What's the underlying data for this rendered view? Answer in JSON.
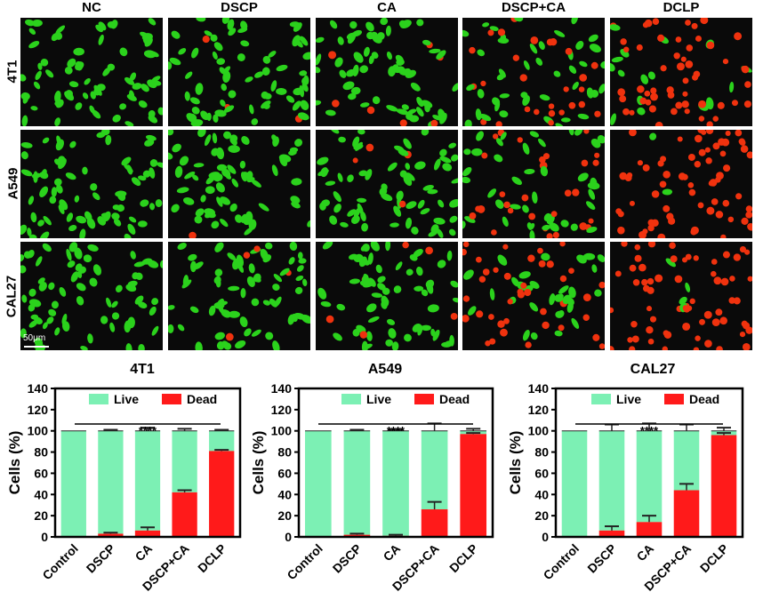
{
  "micrograph_grid": {
    "columns": [
      "NC",
      "DSCP",
      "CA",
      "DSCP+CA",
      "DCLP"
    ],
    "rows": [
      "4T1",
      "A549",
      "CAL27"
    ],
    "scale_bar": "50μm",
    "stain_colors": {
      "live": "#2bd21c",
      "dead": "#f0320e",
      "background": "#0a0a0a"
    }
  },
  "chart_data": [
    {
      "type": "bar",
      "stacked": true,
      "title": "4T1",
      "ylabel": "Cells (%)",
      "categories": [
        "Control",
        "DSCP",
        "CA",
        "DSCP+CA",
        "DCLP"
      ],
      "ylim": [
        0,
        140
      ],
      "yticks": [
        "0",
        "20",
        "40",
        "60",
        "80",
        "100",
        "120",
        "140"
      ],
      "series": [
        {
          "name": "Dead",
          "color": "#ff1a1a",
          "values": [
            0,
            3,
            6,
            42,
            81
          ],
          "errors": [
            0,
            1,
            3,
            2,
            1
          ]
        },
        {
          "name": "Live",
          "color": "#7cf0b4",
          "values": [
            100,
            97,
            94,
            58,
            19
          ],
          "errors": [
            0,
            1,
            3,
            2,
            1
          ]
        }
      ],
      "significance": "****",
      "legend_position": "top-right"
    },
    {
      "type": "bar",
      "stacked": true,
      "title": "A549",
      "ylabel": "Cells (%)",
      "categories": [
        "Control",
        "DSCP",
        "CA",
        "DSCP+CA",
        "DCLP"
      ],
      "ylim": [
        0,
        140
      ],
      "yticks": [
        "0",
        "20",
        "40",
        "60",
        "80",
        "100",
        "120",
        "140"
      ],
      "series": [
        {
          "name": "Dead",
          "color": "#ff1a1a",
          "values": [
            0,
            2,
            1,
            26,
            97
          ],
          "errors": [
            0,
            1,
            1,
            7,
            1
          ]
        },
        {
          "name": "Live",
          "color": "#7cf0b4",
          "values": [
            100,
            98,
            99,
            74,
            3
          ],
          "errors": [
            0,
            1,
            1,
            7,
            2
          ]
        }
      ],
      "significance": "****",
      "legend_position": "top-right"
    },
    {
      "type": "bar",
      "stacked": true,
      "title": "CAL27",
      "ylabel": "Cells (%)",
      "categories": [
        "Control",
        "DSCP",
        "CA",
        "DSCP+CA",
        "DCLP"
      ],
      "ylim": [
        0,
        140
      ],
      "yticks": [
        "0",
        "20",
        "40",
        "60",
        "80",
        "100",
        "120",
        "140"
      ],
      "series": [
        {
          "name": "Dead",
          "color": "#ff1a1a",
          "values": [
            0,
            6,
            14,
            44,
            96
          ],
          "errors": [
            0,
            4,
            6,
            6,
            2
          ]
        },
        {
          "name": "Live",
          "color": "#7cf0b4",
          "values": [
            100,
            94,
            86,
            56,
            4
          ],
          "errors": [
            0,
            6,
            7,
            6,
            3
          ]
        }
      ],
      "significance": "****",
      "legend_position": "top-right"
    }
  ]
}
